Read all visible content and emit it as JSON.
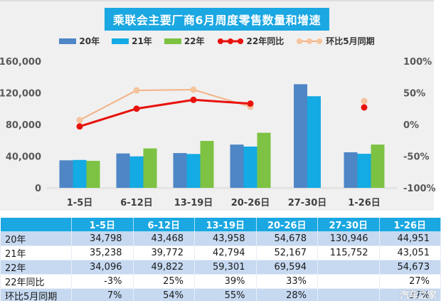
{
  "title": "乘联会主要厂商6月周度零售数量和增速",
  "watermark": "汽车之家",
  "colors": {
    "accent_cyan": "#1aa7e2",
    "panel_bg": "#f0f0f0",
    "bar_2020": "#4e86c6",
    "bar_2021": "#14aae3",
    "bar_2022": "#7dc242",
    "line_yoy": "#e8120d",
    "line_mom": "#f3b285",
    "dot_mom": "#f6c39c",
    "table_stripe": "#c6d9f1",
    "tick_text": "#595959"
  },
  "chart_data": {
    "type": "bar+line",
    "title": "乘联会主要厂商6月周度零售数量和增速",
    "categories": [
      "1-5日",
      "6-12日",
      "13-19日",
      "20-26日",
      "27-30日",
      "1-26日"
    ],
    "bar_series": [
      {
        "name": "20年",
        "color": "#4e86c6",
        "values": [
          34798,
          43468,
          43958,
          54678,
          130946,
          44951
        ]
      },
      {
        "name": "21年",
        "color": "#14aae3",
        "values": [
          35238,
          39772,
          42794,
          52167,
          115752,
          43051
        ]
      },
      {
        "name": "22年",
        "color": "#7dc242",
        "values": [
          34096,
          49822,
          59301,
          69594,
          null,
          54673
        ]
      }
    ],
    "line_series": [
      {
        "name": "环比5月同期",
        "color": "#f3b285",
        "dot_color": "#f6c39c",
        "stroke_width": 2,
        "values": [
          7,
          54,
          55,
          28,
          null,
          37
        ]
      },
      {
        "name": "22年同比",
        "color": "#e8120d",
        "dot_color": "#e8120d",
        "stroke_width": 3,
        "values": [
          -3,
          25,
          39,
          33,
          null,
          27
        ]
      }
    ],
    "legend_order": [
      "20年",
      "21年",
      "22年",
      "22年同比",
      "环比5月同期"
    ],
    "left_axis": {
      "min": 0,
      "max": 160000,
      "tick_values": [
        0,
        40000,
        80000,
        120000,
        160000
      ],
      "tick_labels": [
        "0",
        "40,000",
        "80,000",
        "120,000",
        "160,000"
      ]
    },
    "right_axis": {
      "min": -100,
      "max": 100,
      "tick_values": [
        -100,
        -50,
        0,
        50,
        100
      ],
      "tick_labels": [
        "-100%",
        "-50%",
        "0%",
        "50%",
        "100%"
      ]
    },
    "grid": false,
    "legend_position": "top"
  },
  "table": {
    "columns": [
      "1-5日",
      "6-12日",
      "13-19日",
      "20-26日",
      "27-30日",
      "1-26日"
    ],
    "rows": [
      {
        "label": "20年",
        "values": [
          "34,798",
          "43,468",
          "43,958",
          "54,678",
          "130,946",
          "44,951"
        ]
      },
      {
        "label": "21年",
        "values": [
          "35,238",
          "39,772",
          "42,794",
          "52,167",
          "115,752",
          "43,051"
        ]
      },
      {
        "label": "22年",
        "values": [
          "34,096",
          "49,822",
          "59,301",
          "69,594",
          "",
          "54,673"
        ]
      },
      {
        "label": "22年同比",
        "values": [
          "-3%",
          "25%",
          "39%",
          "33%",
          "",
          "27%"
        ]
      },
      {
        "label": "环比5月同期",
        "values": [
          "7%",
          "54%",
          "55%",
          "28%",
          "",
          "37%"
        ]
      }
    ]
  }
}
